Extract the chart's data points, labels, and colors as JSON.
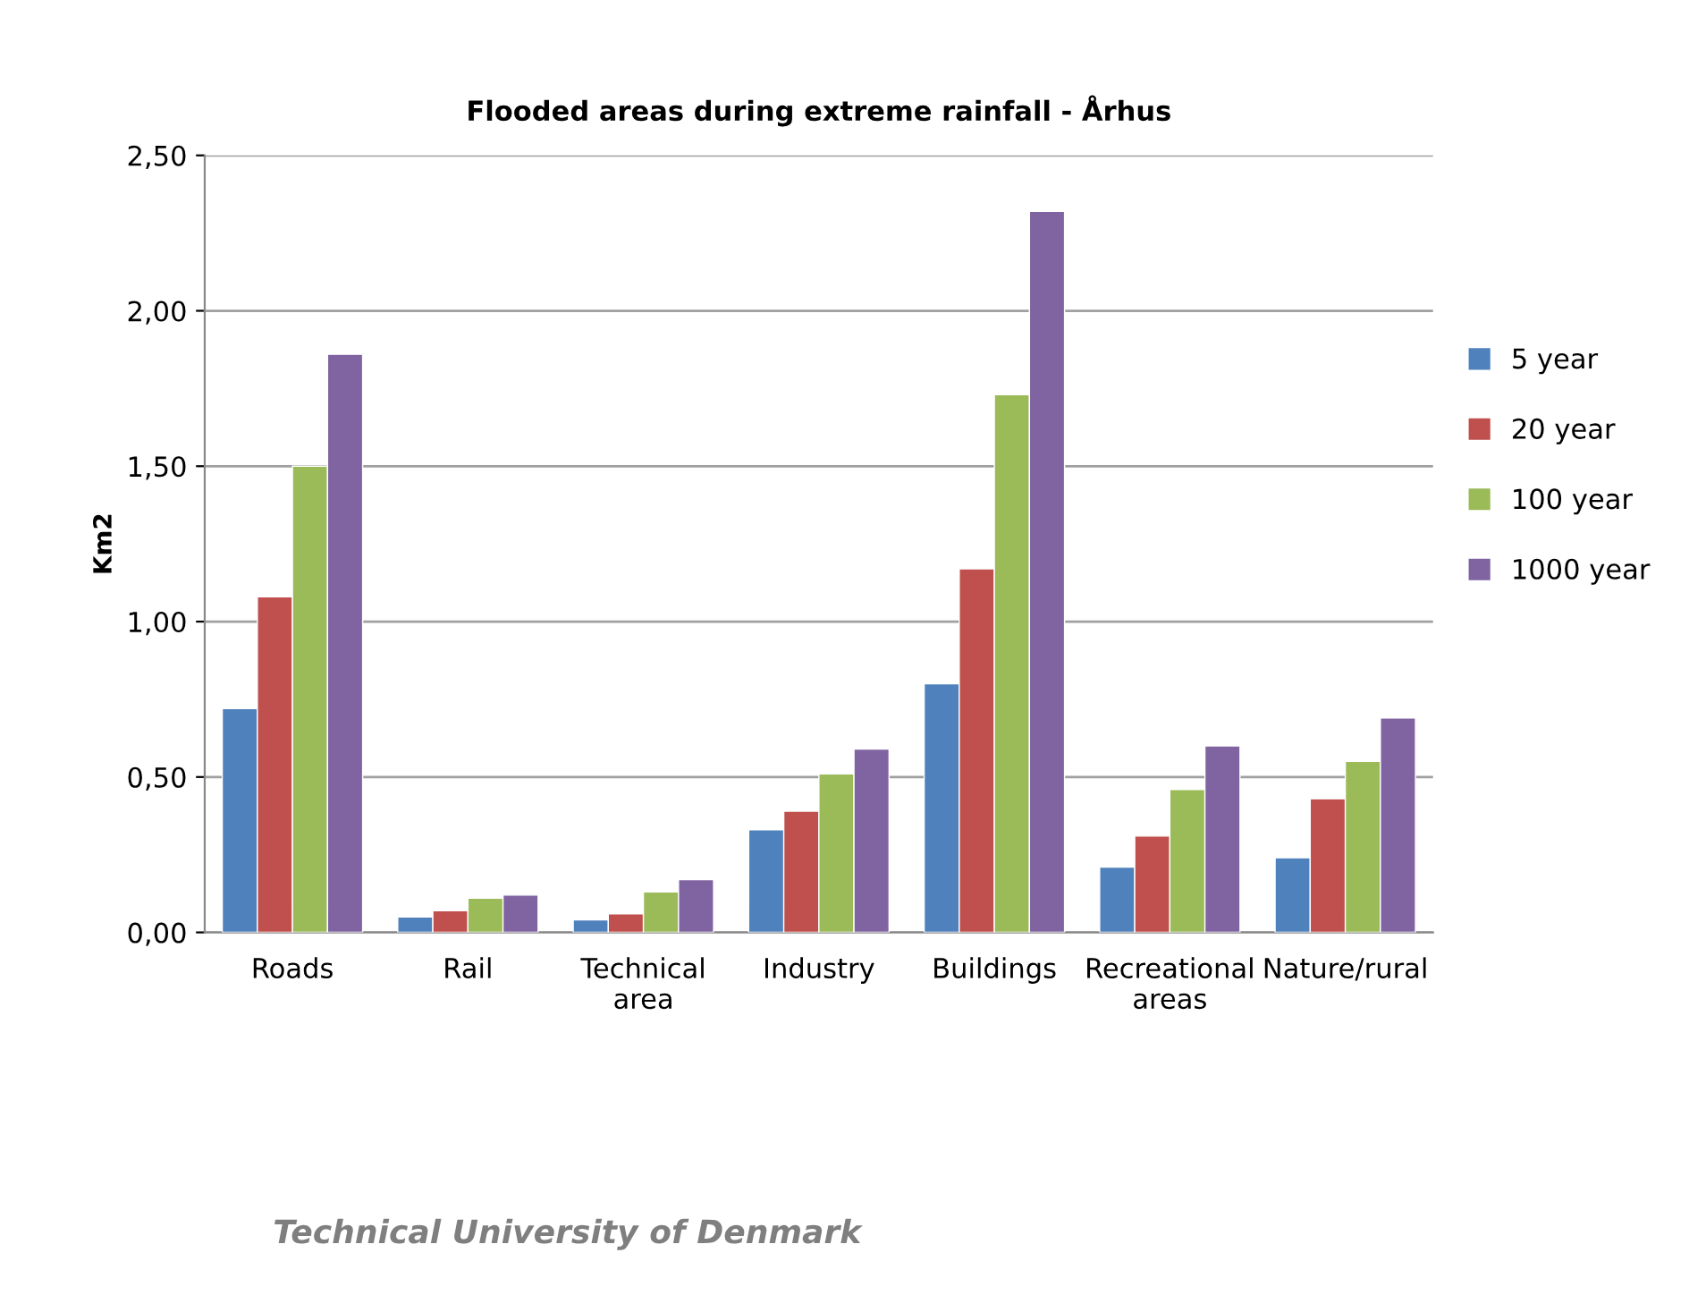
{
  "chart_data": {
    "type": "bar",
    "title": "Flooded areas during extreme rainfall - Århus",
    "ylabel": "Km2",
    "categories": [
      "Roads",
      "Rail",
      "Technical\narea",
      "Industry",
      "Buildings",
      "Recreational\nareas",
      "Nature/rural"
    ],
    "series": [
      {
        "name": "5 year",
        "color": "#4f81bd",
        "values": [
          0.72,
          0.05,
          0.04,
          0.33,
          0.8,
          0.21,
          0.24
        ]
      },
      {
        "name": "20 year",
        "color": "#c0504d",
        "values": [
          1.08,
          0.07,
          0.06,
          0.39,
          1.17,
          0.31,
          0.43
        ]
      },
      {
        "name": "100 year",
        "color": "#9bbb59",
        "values": [
          1.5,
          0.11,
          0.13,
          0.51,
          1.73,
          0.46,
          0.55
        ]
      },
      {
        "name": "1000 year",
        "color": "#8064a2",
        "values": [
          1.86,
          0.12,
          0.17,
          0.59,
          2.32,
          0.6,
          0.69
        ]
      }
    ],
    "ylim": [
      0,
      2.5
    ],
    "yticks": [
      {
        "value": 0,
        "label": "0,00"
      },
      {
        "value": 0.5,
        "label": "0,50"
      },
      {
        "value": 1,
        "label": "1,00"
      },
      {
        "value": 1.5,
        "label": "1,50"
      },
      {
        "value": 2,
        "label": "2,00"
      },
      {
        "value": 2.5,
        "label": "2,50"
      }
    ],
    "grid": "y",
    "legend": "right",
    "annotations": [
      "Technical University of Denmark"
    ]
  }
}
